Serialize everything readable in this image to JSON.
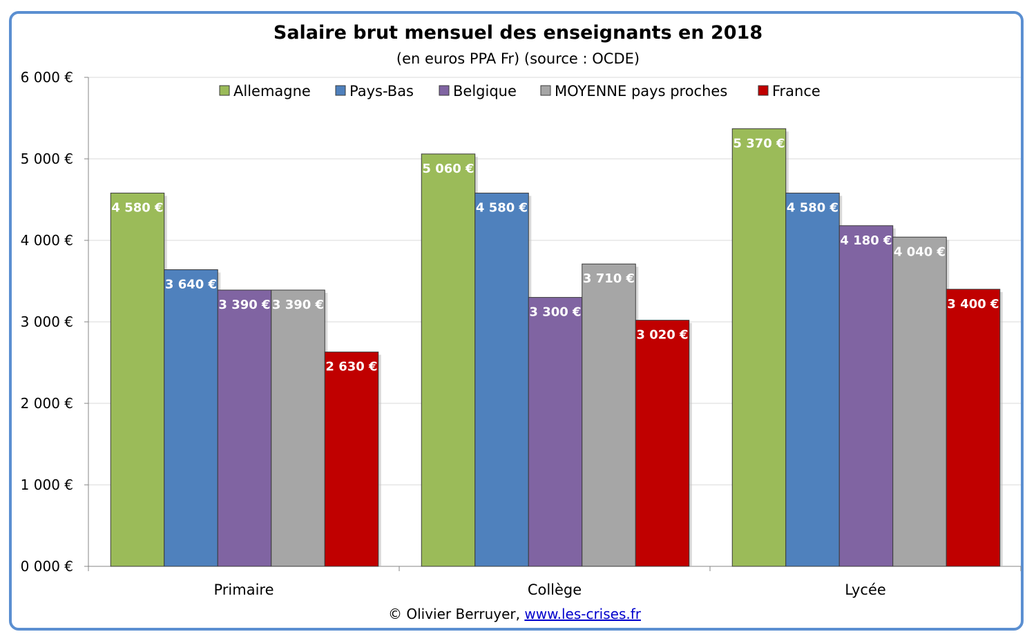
{
  "title": "Salaire brut mensuel des enseignants en 2018",
  "subtitle": "(en euros PPA Fr) (source : OCDE)",
  "footer": {
    "copyright": "© Olivier  Berruyer, ",
    "link": "www.les-crises.fr"
  },
  "chart_data": {
    "type": "bar",
    "categories": [
      "Primaire",
      "Collège",
      "Lycée"
    ],
    "series": [
      {
        "name": "Allemagne",
        "color": "#9bbb59",
        "values": [
          4580,
          5060,
          5370
        ],
        "labels": [
          "4 580 €",
          "5 060 €",
          "5 370 €"
        ]
      },
      {
        "name": "Pays-Bas",
        "color": "#4f81bd",
        "values": [
          3640,
          4580,
          4580
        ],
        "labels": [
          "3 640 €",
          "4 580 €",
          "4 580 €"
        ]
      },
      {
        "name": "Belgique",
        "color": "#8064a2",
        "values": [
          3390,
          3300,
          4180
        ],
        "labels": [
          "3 390 €",
          "3 300 €",
          "4 180 €"
        ]
      },
      {
        "name": "MOYENNE pays proches",
        "color": "#a6a6a6",
        "values": [
          3390,
          3710,
          4040
        ],
        "labels": [
          "3 390 €",
          "3 710 €",
          "4 040 €"
        ]
      },
      {
        "name": "France",
        "color": "#c00000",
        "values": [
          2630,
          3020,
          3400
        ],
        "labels": [
          "2 630 €",
          "3 020 €",
          "3 400 €"
        ]
      }
    ],
    "ylim": [
      0,
      6000
    ],
    "yticks": [
      0,
      1000,
      2000,
      3000,
      4000,
      5000,
      6000
    ],
    "ytick_labels": [
      "0 000 €",
      "1 000 €",
      "2 000 €",
      "3 000 €",
      "4 000 €",
      "5 000 €",
      "6 000 €"
    ],
    "grid": true,
    "legend_position": "top"
  }
}
